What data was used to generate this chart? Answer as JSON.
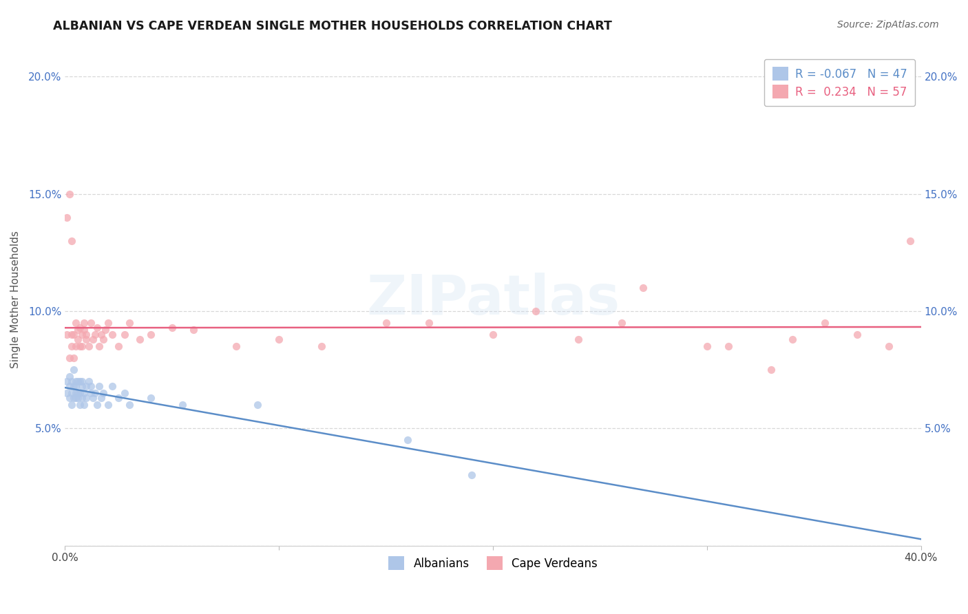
{
  "title": "ALBANIAN VS CAPE VERDEAN SINGLE MOTHER HOUSEHOLDS CORRELATION CHART",
  "source": "Source: ZipAtlas.com",
  "ylabel": "Single Mother Households",
  "xlabel": "",
  "xlim": [
    0.0,
    0.4
  ],
  "ylim": [
    0.0,
    0.21
  ],
  "ytick_values": [
    0.0,
    0.05,
    0.1,
    0.15,
    0.2
  ],
  "xtick_values": [
    0.0,
    0.1,
    0.2,
    0.3,
    0.4
  ],
  "albanian_color": "#aec6e8",
  "capeverdean_color": "#f4a8b0",
  "albanian_line_color": "#5b8dc8",
  "capeverdean_line_color": "#e86080",
  "albanian_label": "Albanians",
  "capeverdean_label": "Cape Verdeans",
  "R_albanian": -0.067,
  "N_albanian": 47,
  "R_capeverdean": 0.234,
  "N_capeverdean": 57,
  "watermark": "ZIPatlas",
  "background_color": "#ffffff",
  "grid_color": "#d8d8d8",
  "albanian_scatter_x": [
    0.001,
    0.001,
    0.002,
    0.002,
    0.002,
    0.003,
    0.003,
    0.003,
    0.004,
    0.004,
    0.004,
    0.005,
    0.005,
    0.005,
    0.005,
    0.006,
    0.006,
    0.006,
    0.007,
    0.007,
    0.007,
    0.008,
    0.008,
    0.008,
    0.009,
    0.009,
    0.01,
    0.01,
    0.011,
    0.012,
    0.012,
    0.013,
    0.014,
    0.015,
    0.016,
    0.017,
    0.018,
    0.02,
    0.022,
    0.025,
    0.028,
    0.03,
    0.04,
    0.055,
    0.09,
    0.16,
    0.19
  ],
  "albanian_scatter_y": [
    0.07,
    0.065,
    0.068,
    0.063,
    0.072,
    0.065,
    0.07,
    0.06,
    0.068,
    0.063,
    0.075,
    0.065,
    0.07,
    0.063,
    0.068,
    0.065,
    0.07,
    0.063,
    0.065,
    0.07,
    0.06,
    0.068,
    0.063,
    0.07,
    0.065,
    0.06,
    0.068,
    0.063,
    0.07,
    0.065,
    0.068,
    0.063,
    0.065,
    0.06,
    0.068,
    0.063,
    0.065,
    0.06,
    0.068,
    0.063,
    0.065,
    0.06,
    0.063,
    0.06,
    0.06,
    0.045,
    0.03
  ],
  "capeverdean_scatter_x": [
    0.001,
    0.001,
    0.002,
    0.002,
    0.003,
    0.003,
    0.003,
    0.004,
    0.004,
    0.005,
    0.005,
    0.006,
    0.006,
    0.007,
    0.007,
    0.008,
    0.008,
    0.009,
    0.009,
    0.01,
    0.01,
    0.011,
    0.012,
    0.013,
    0.014,
    0.015,
    0.016,
    0.017,
    0.018,
    0.019,
    0.02,
    0.022,
    0.025,
    0.028,
    0.03,
    0.035,
    0.04,
    0.05,
    0.06,
    0.08,
    0.1,
    0.12,
    0.15,
    0.17,
    0.2,
    0.22,
    0.24,
    0.26,
    0.27,
    0.3,
    0.31,
    0.33,
    0.34,
    0.355,
    0.37,
    0.385,
    0.395
  ],
  "capeverdean_scatter_y": [
    0.09,
    0.14,
    0.15,
    0.08,
    0.09,
    0.13,
    0.085,
    0.09,
    0.08,
    0.085,
    0.095,
    0.088,
    0.092,
    0.085,
    0.093,
    0.09,
    0.085,
    0.092,
    0.095,
    0.088,
    0.09,
    0.085,
    0.095,
    0.088,
    0.09,
    0.093,
    0.085,
    0.09,
    0.088,
    0.092,
    0.095,
    0.09,
    0.085,
    0.09,
    0.095,
    0.088,
    0.09,
    0.093,
    0.092,
    0.085,
    0.088,
    0.085,
    0.095,
    0.095,
    0.09,
    0.1,
    0.088,
    0.095,
    0.11,
    0.085,
    0.085,
    0.075,
    0.088,
    0.095,
    0.09,
    0.085,
    0.13
  ]
}
